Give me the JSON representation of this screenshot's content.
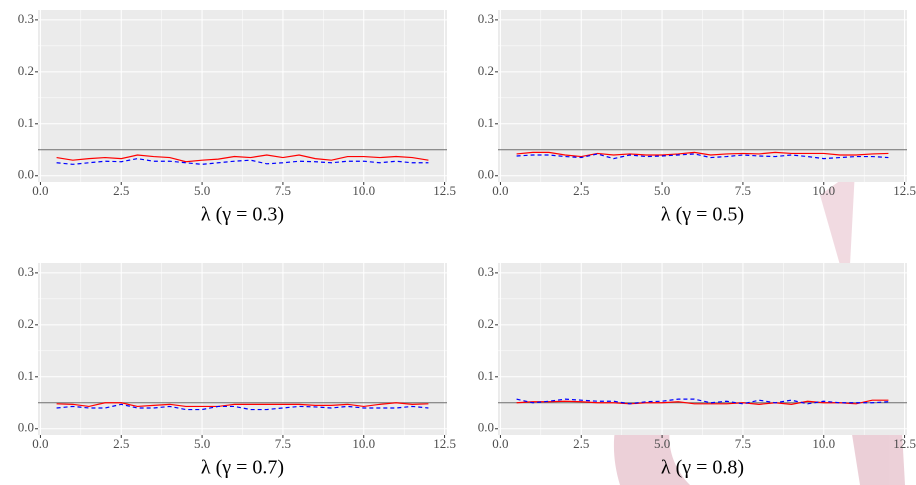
{
  "chart_data": [
    {
      "type": "line",
      "xlabel": "λ (γ = 0.3)",
      "x": [
        0.5,
        1,
        1.5,
        2,
        2.5,
        3,
        3.5,
        4,
        4.5,
        5,
        5.5,
        6,
        6.5,
        7,
        7.5,
        8,
        8.5,
        9,
        9.5,
        10,
        10.5,
        11,
        11.5,
        12
      ],
      "series": [
        {
          "color": "#ff0000",
          "linestyle": "solid",
          "values": [
            0.035,
            0.03,
            0.033,
            0.035,
            0.033,
            0.04,
            0.037,
            0.035,
            0.027,
            0.03,
            0.032,
            0.037,
            0.035,
            0.04,
            0.035,
            0.04,
            0.033,
            0.03,
            0.037,
            0.037,
            0.035,
            0.037,
            0.035,
            0.03
          ]
        },
        {
          "color": "#0000ff",
          "linestyle": "dashed",
          "values": [
            0.025,
            0.022,
            0.025,
            0.028,
            0.027,
            0.033,
            0.028,
            0.028,
            0.025,
            0.022,
            0.025,
            0.028,
            0.03,
            0.023,
            0.025,
            0.028,
            0.027,
            0.025,
            0.028,
            0.028,
            0.025,
            0.028,
            0.025,
            0.025
          ]
        }
      ],
      "hline": 0.05,
      "hline_color": "#6e6e6e",
      "xlim": [
        -0.075,
        12.575
      ],
      "ylim": [
        -0.012,
        0.319
      ],
      "xticks": [
        {
          "value": 0,
          "label": "0.0"
        },
        2.5,
        {
          "value": 5,
          "label": "5.0"
        },
        7.5,
        {
          "value": 10,
          "label": "10.0"
        },
        12.5
      ],
      "yticks": [
        {
          "value": 0,
          "label": "0.0"
        },
        0.1,
        0.2,
        0.3
      ],
      "x_minor_grid": [
        1.25,
        3.75,
        6.25,
        8.75,
        11.25
      ],
      "y_minor_grid": [
        0.05,
        0.15,
        0.25
      ],
      "grid": true
    },
    {
      "type": "line",
      "xlabel": "λ (γ = 0.5)",
      "x": [
        0.5,
        1,
        1.5,
        2,
        2.5,
        3,
        3.5,
        4,
        4.5,
        5,
        5.5,
        6,
        6.5,
        7,
        7.5,
        8,
        8.5,
        9,
        9.5,
        10,
        10.5,
        11,
        11.5,
        12
      ],
      "series": [
        {
          "color": "#ff0000",
          "linestyle": "solid",
          "values": [
            0.042,
            0.045,
            0.045,
            0.04,
            0.037,
            0.043,
            0.04,
            0.042,
            0.04,
            0.04,
            0.042,
            0.045,
            0.04,
            0.042,
            0.043,
            0.042,
            0.045,
            0.043,
            0.043,
            0.043,
            0.04,
            0.04,
            0.042,
            0.043
          ]
        },
        {
          "color": "#0000ff",
          "linestyle": "dashed",
          "values": [
            0.038,
            0.04,
            0.04,
            0.037,
            0.035,
            0.042,
            0.033,
            0.04,
            0.037,
            0.038,
            0.04,
            0.042,
            0.035,
            0.037,
            0.04,
            0.038,
            0.037,
            0.04,
            0.037,
            0.033,
            0.035,
            0.037,
            0.037,
            0.035
          ]
        }
      ],
      "hline": 0.05,
      "hline_color": "#6e6e6e",
      "xlim": [
        -0.075,
        12.575
      ],
      "ylim": [
        -0.012,
        0.319
      ],
      "xticks": [
        {
          "value": 0,
          "label": "0.0"
        },
        2.5,
        {
          "value": 5,
          "label": "5.0"
        },
        7.5,
        {
          "value": 10,
          "label": "10.0"
        },
        12.5
      ],
      "yticks": [
        {
          "value": 0,
          "label": "0.0"
        },
        0.1,
        0.2,
        0.3
      ],
      "x_minor_grid": [
        1.25,
        3.75,
        6.25,
        8.75,
        11.25
      ],
      "y_minor_grid": [
        0.05,
        0.15,
        0.25
      ],
      "grid": true
    },
    {
      "type": "line",
      "xlabel": "λ (γ = 0.7)",
      "x": [
        0.5,
        1,
        1.5,
        2,
        2.5,
        3,
        3.5,
        4,
        4.5,
        5,
        5.5,
        6,
        6.5,
        7,
        7.5,
        8,
        8.5,
        9,
        9.5,
        10,
        10.5,
        11,
        11.5,
        12
      ],
      "series": [
        {
          "color": "#ff0000",
          "linestyle": "solid",
          "values": [
            0.048,
            0.047,
            0.043,
            0.05,
            0.05,
            0.043,
            0.045,
            0.047,
            0.043,
            0.043,
            0.043,
            0.047,
            0.047,
            0.047,
            0.047,
            0.047,
            0.045,
            0.045,
            0.047,
            0.043,
            0.047,
            0.05,
            0.047,
            0.048
          ]
        },
        {
          "color": "#0000ff",
          "linestyle": "dashed",
          "values": [
            0.04,
            0.043,
            0.04,
            0.04,
            0.047,
            0.04,
            0.04,
            0.043,
            0.037,
            0.037,
            0.043,
            0.043,
            0.037,
            0.037,
            0.04,
            0.043,
            0.042,
            0.04,
            0.043,
            0.04,
            0.04,
            0.04,
            0.043,
            0.04
          ]
        }
      ],
      "hline": 0.05,
      "hline_color": "#6e6e6e",
      "xlim": [
        -0.075,
        12.575
      ],
      "ylim": [
        -0.012,
        0.319
      ],
      "xticks": [
        {
          "value": 0,
          "label": "0.0"
        },
        2.5,
        {
          "value": 5,
          "label": "5.0"
        },
        7.5,
        {
          "value": 10,
          "label": "10.0"
        },
        12.5
      ],
      "yticks": [
        {
          "value": 0,
          "label": "0.0"
        },
        0.1,
        0.2,
        0.3
      ],
      "x_minor_grid": [
        1.25,
        3.75,
        6.25,
        8.75,
        11.25
      ],
      "y_minor_grid": [
        0.05,
        0.15,
        0.25
      ],
      "grid": true
    },
    {
      "type": "line",
      "xlabel": "λ (γ = 0.8)",
      "x": [
        0.5,
        1,
        1.5,
        2,
        2.5,
        3,
        3.5,
        4,
        4.5,
        5,
        5.5,
        6,
        6.5,
        7,
        7.5,
        8,
        8.5,
        9,
        9.5,
        10,
        10.5,
        11,
        11.5,
        12
      ],
      "series": [
        {
          "color": "#ff0000",
          "linestyle": "solid",
          "values": [
            0.05,
            0.052,
            0.052,
            0.053,
            0.052,
            0.05,
            0.05,
            0.048,
            0.05,
            0.05,
            0.052,
            0.048,
            0.048,
            0.048,
            0.05,
            0.047,
            0.05,
            0.047,
            0.053,
            0.05,
            0.05,
            0.048,
            0.055,
            0.055
          ]
        },
        {
          "color": "#0000ff",
          "linestyle": "dashed",
          "values": [
            0.057,
            0.05,
            0.053,
            0.057,
            0.055,
            0.053,
            0.053,
            0.048,
            0.052,
            0.053,
            0.057,
            0.057,
            0.05,
            0.053,
            0.048,
            0.055,
            0.05,
            0.055,
            0.048,
            0.053,
            0.05,
            0.05,
            0.05,
            0.052
          ]
        }
      ],
      "hline": 0.05,
      "hline_color": "#6e6e6e",
      "xlim": [
        -0.075,
        12.575
      ],
      "ylim": [
        -0.012,
        0.319
      ],
      "xticks": [
        {
          "value": 0,
          "label": "0.0"
        },
        2.5,
        {
          "value": 5,
          "label": "5.0"
        },
        7.5,
        {
          "value": 10,
          "label": "10.0"
        },
        12.5
      ],
      "yticks": [
        {
          "value": 0,
          "label": "0.0"
        },
        0.1,
        0.2,
        0.3
      ],
      "x_minor_grid": [
        1.25,
        3.75,
        6.25,
        8.75,
        11.25
      ],
      "y_minor_grid": [
        0.05,
        0.15,
        0.25
      ],
      "grid": true
    }
  ]
}
